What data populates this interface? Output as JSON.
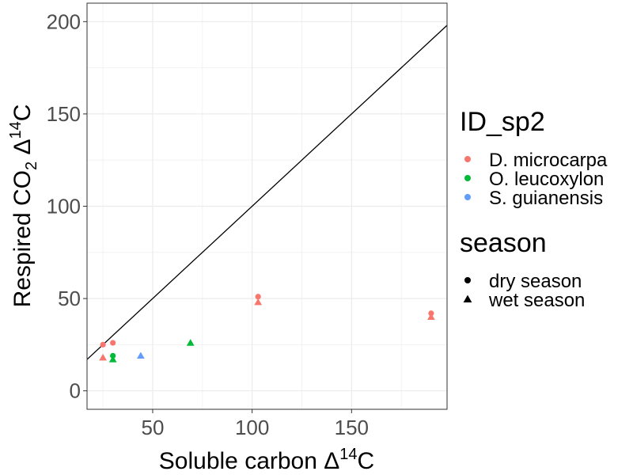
{
  "chart_data": {
    "type": "scatter",
    "xlabel": {
      "pre": "Soluble carbon Δ",
      "sup": "14",
      "post": "C"
    },
    "ylabel": {
      "pre": "Respired CO",
      "sub": "2",
      "mid": " Δ",
      "sup": "14",
      "post": "C"
    },
    "xlim": [
      17,
      198
    ],
    "ylim": [
      -10,
      210
    ],
    "xticks": [
      50,
      100,
      150
    ],
    "yticks": [
      0,
      50,
      100,
      150,
      200
    ],
    "xtick_labels": [
      "50",
      "100",
      "150"
    ],
    "ytick_labels": [
      "0",
      "50",
      "100",
      "150",
      "200"
    ],
    "grid": true,
    "reference_line": {
      "slope": 1,
      "intercept": 0
    },
    "legend_position": "right",
    "legends": {
      "color": {
        "title": "ID_sp2",
        "entries": [
          {
            "label": "D. microcarpa",
            "color": "#F8766D"
          },
          {
            "label": "O. leucoxylon",
            "color": "#00BA38"
          },
          {
            "label": "S. guianensis",
            "color": "#619CFF"
          }
        ]
      },
      "shape": {
        "title": "season",
        "entries": [
          {
            "label": "dry season",
            "shape": "circle"
          },
          {
            "label": "wet season",
            "shape": "triangle"
          }
        ]
      }
    },
    "points": [
      {
        "x": 25,
        "y": 25,
        "species": "D. microcarpa",
        "season": "dry season"
      },
      {
        "x": 30,
        "y": 26,
        "species": "D. microcarpa",
        "season": "dry season"
      },
      {
        "x": 103,
        "y": 51,
        "species": "D. microcarpa",
        "season": "dry season"
      },
      {
        "x": 190,
        "y": 42,
        "species": "D. microcarpa",
        "season": "dry season"
      },
      {
        "x": 25,
        "y": 18,
        "species": "D. microcarpa",
        "season": "wet season"
      },
      {
        "x": 103,
        "y": 48,
        "species": "D. microcarpa",
        "season": "wet season"
      },
      {
        "x": 190,
        "y": 40,
        "species": "D. microcarpa",
        "season": "wet season"
      },
      {
        "x": 30,
        "y": 19,
        "species": "O. leucoxylon",
        "season": "dry season"
      },
      {
        "x": 30,
        "y": 17,
        "species": "O. leucoxylon",
        "season": "wet season"
      },
      {
        "x": 69,
        "y": 26,
        "species": "O. leucoxylon",
        "season": "wet season"
      },
      {
        "x": 44,
        "y": 19,
        "species": "S. guianensis",
        "season": "wet season"
      }
    ]
  }
}
